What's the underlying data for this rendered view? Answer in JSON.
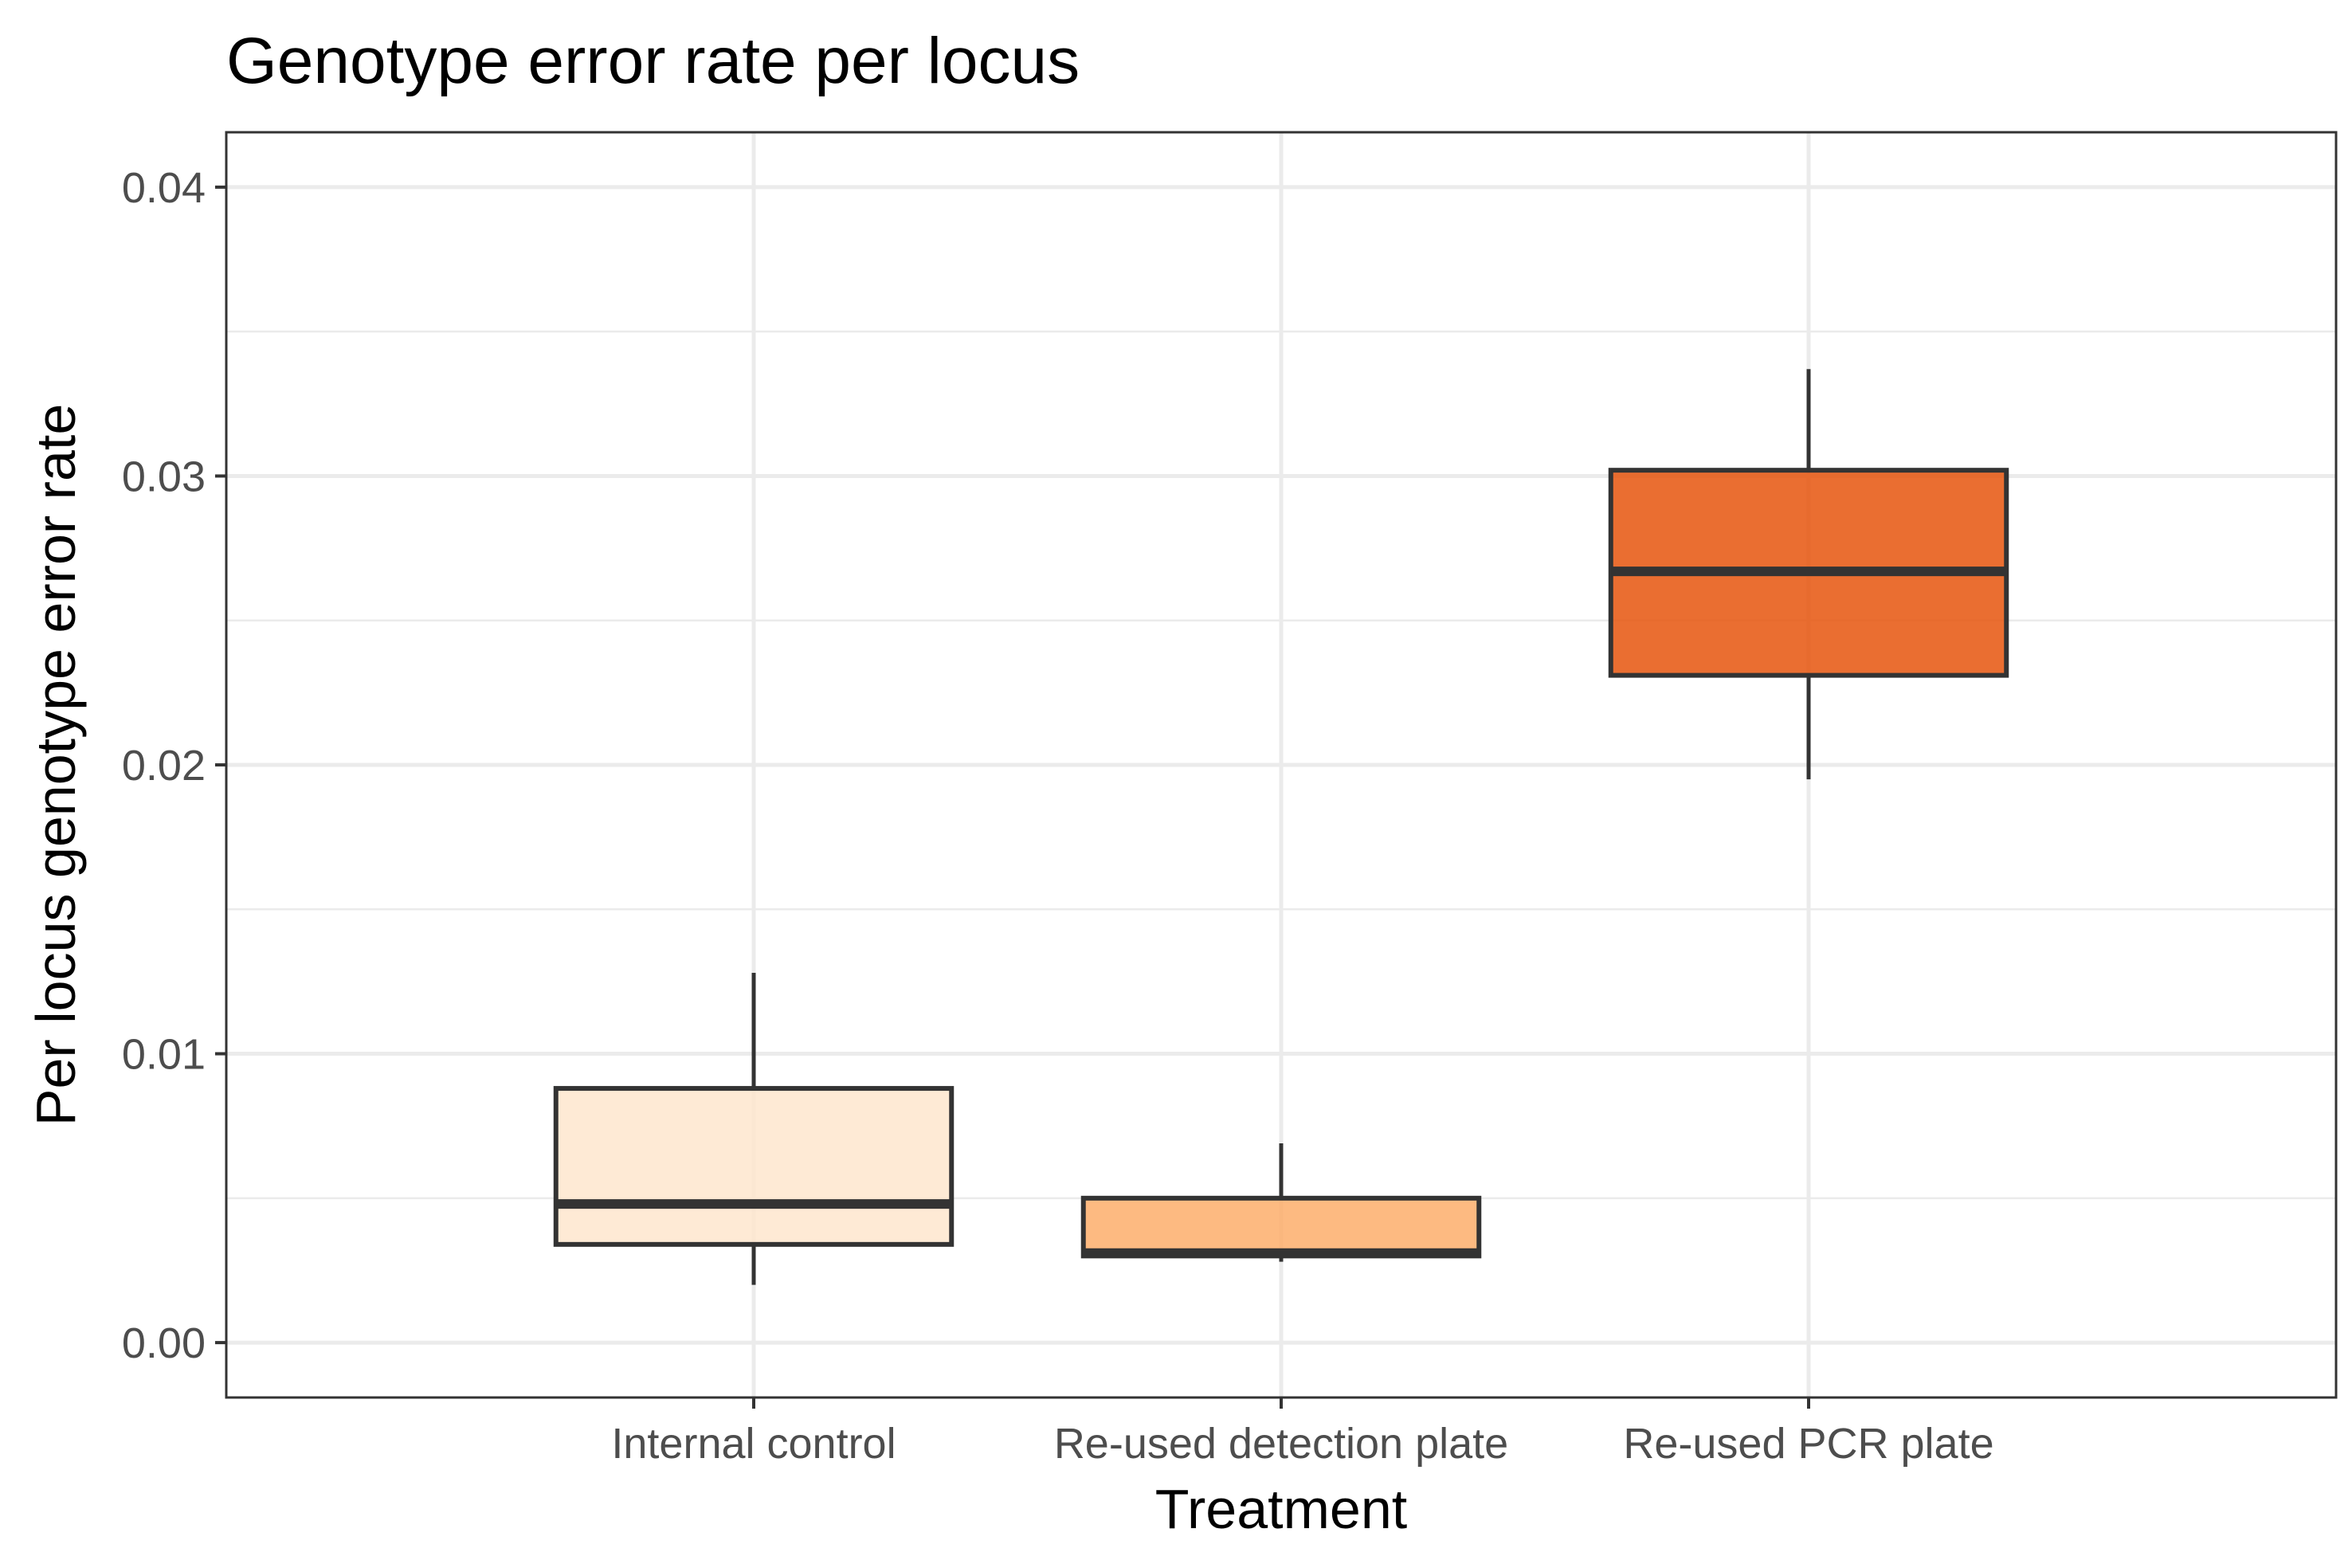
{
  "chart_data": {
    "type": "box",
    "title": "Genotype error rate per locus",
    "xlabel": "Treatment",
    "ylabel": "Per locus genotype error rate",
    "ylim": [
      -0.0019,
      0.0419
    ],
    "yticks": [
      0.0,
      0.01,
      0.02,
      0.03,
      0.04
    ],
    "ytick_labels": [
      "0.00",
      "0.01",
      "0.02",
      "0.03",
      "0.04"
    ],
    "grid": true,
    "legend": "none",
    "categories": [
      "Internal control",
      "Re-used detection plate",
      "Re-used PCR plate"
    ],
    "boxes": [
      {
        "category": "Internal control",
        "whisker_low": 0.002,
        "q1": 0.0034,
        "median": 0.0048,
        "q3": 0.0088,
        "whisker_high": 0.0128,
        "fill": "#fee6ce"
      },
      {
        "category": "Re-used detection plate",
        "whisker_low": 0.0028,
        "q1": 0.003,
        "median": 0.0031,
        "q3": 0.005,
        "whisker_high": 0.0069,
        "fill": "#fdae6b"
      },
      {
        "category": "Re-used PCR plate",
        "whisker_low": 0.0195,
        "q1": 0.0231,
        "median": 0.0267,
        "q3": 0.0302,
        "whisker_high": 0.0337,
        "fill": "#e6550d"
      }
    ],
    "colors": {
      "box_outline": "#333333",
      "grid": "#ebebeb",
      "panel_border": "#333333"
    }
  }
}
